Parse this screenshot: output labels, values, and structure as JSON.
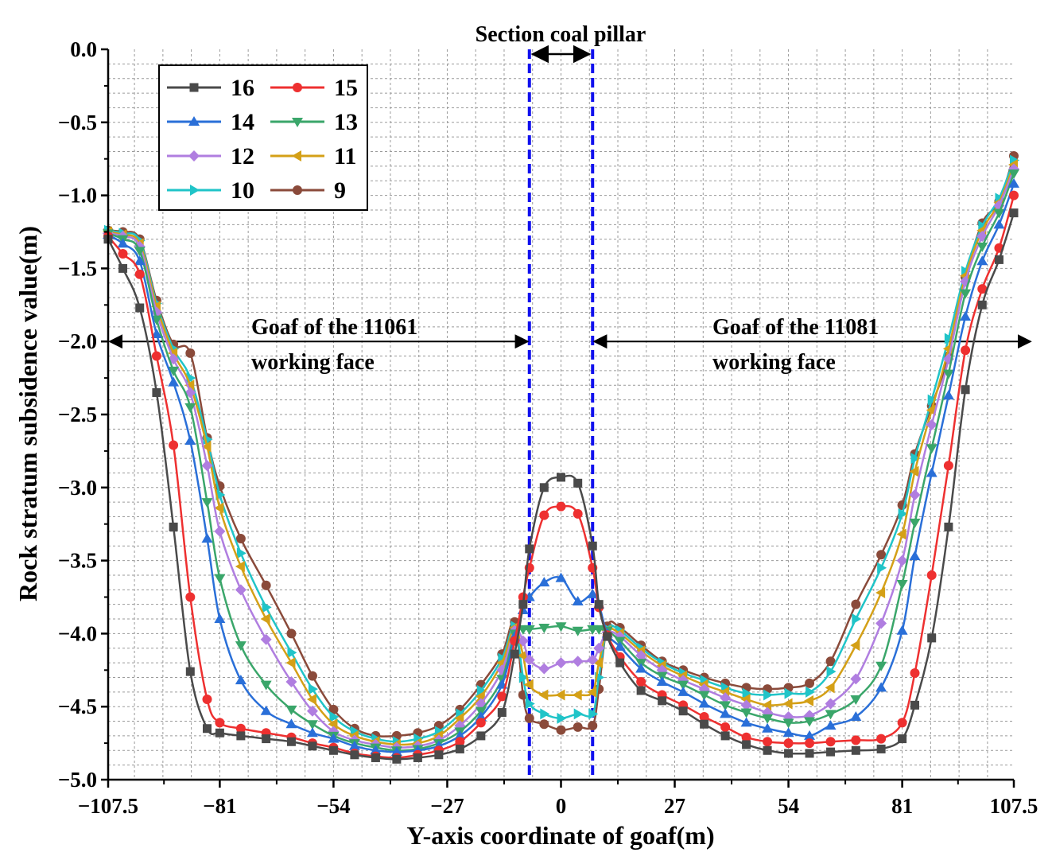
{
  "chart_data": {
    "type": "line",
    "title": "",
    "xlabel": "Y-axis coordinate of goaf(m)",
    "ylabel": "Rock stratum subsidence value(m)",
    "xlim": [
      -107.5,
      107.5
    ],
    "ylim": [
      -5.0,
      0.0
    ],
    "xticks": [
      -107.5,
      -81,
      -54,
      -27,
      0,
      27,
      54,
      81,
      107.5
    ],
    "xtick_labels": [
      "−107.5",
      "−81",
      "−54",
      "−27",
      "0",
      "27",
      "54",
      "81",
      "107.5"
    ],
    "yticks": [
      0.0,
      -0.5,
      -1.0,
      -1.5,
      -2.0,
      -2.5,
      -3.0,
      -3.5,
      -4.0,
      -4.5,
      -5.0
    ],
    "ytick_labels": [
      "0.0",
      "−0.5",
      "−1.0",
      "−1.5",
      "−2.0",
      "−2.5",
      "−3.0",
      "−3.5",
      "−4.0",
      "−4.5",
      "−5.0"
    ],
    "grid": true,
    "legend_position": "top-left",
    "annotations": {
      "pillar_label": "Section coal pillar",
      "left_goaf_line1": "Goaf of the 11061",
      "left_goaf_line2": "working face",
      "right_goaf_line1": "Goaf of the 11081",
      "right_goaf_line2": "working face",
      "pillar_bounds": [
        -7.5,
        7.5
      ],
      "goaf_arrow_y": -2.0
    },
    "colors": {
      "pillar_lines": "#1010ee"
    },
    "series": [
      {
        "name": "16",
        "color": "#4a4a4a",
        "marker": "square",
        "x": [
          -107.5,
          -104,
          -100,
          -96,
          -92,
          -88,
          -84,
          -81,
          -76,
          -70,
          -64,
          -59,
          -54,
          -49,
          -44,
          -39,
          -34,
          -29,
          -24,
          -19,
          -14,
          -11,
          -9,
          -7.5,
          -4,
          0,
          4,
          7.5,
          9,
          11,
          14,
          19,
          24,
          29,
          34,
          39,
          44,
          49,
          54,
          59,
          64,
          70,
          76,
          81,
          84,
          88,
          92,
          96,
          100,
          104,
          107.5
        ],
        "y": [
          -1.3,
          -1.5,
          -1.77,
          -2.35,
          -3.27,
          -4.26,
          -4.65,
          -4.68,
          -4.7,
          -4.72,
          -4.74,
          -4.77,
          -4.8,
          -4.83,
          -4.85,
          -4.86,
          -4.85,
          -4.83,
          -4.79,
          -4.7,
          -4.54,
          -4.14,
          -3.8,
          -3.42,
          -3.0,
          -2.93,
          -2.97,
          -3.4,
          -3.8,
          -4.02,
          -4.2,
          -4.39,
          -4.46,
          -4.53,
          -4.62,
          -4.7,
          -4.76,
          -4.8,
          -4.82,
          -4.82,
          -4.81,
          -4.8,
          -4.79,
          -4.72,
          -4.49,
          -4.03,
          -3.27,
          -2.33,
          -1.75,
          -1.44,
          -1.12
        ]
      },
      {
        "name": "15",
        "color": "#ee3030",
        "marker": "circle",
        "x": [
          -107.5,
          -104,
          -100,
          -96,
          -92,
          -88,
          -84,
          -81,
          -76,
          -70,
          -64,
          -59,
          -54,
          -49,
          -44,
          -39,
          -34,
          -29,
          -24,
          -19,
          -14,
          -11,
          -9,
          -7.5,
          -4,
          0,
          4,
          7.5,
          9,
          11,
          14,
          19,
          24,
          29,
          34,
          39,
          44,
          49,
          54,
          59,
          64,
          70,
          76,
          81,
          84,
          88,
          92,
          96,
          100,
          104,
          107.5
        ],
        "y": [
          -1.28,
          -1.4,
          -1.54,
          -2.1,
          -2.71,
          -3.75,
          -4.45,
          -4.61,
          -4.65,
          -4.68,
          -4.71,
          -4.75,
          -4.78,
          -4.82,
          -4.84,
          -4.85,
          -4.83,
          -4.8,
          -4.74,
          -4.61,
          -4.43,
          -4.05,
          -3.75,
          -3.55,
          -3.19,
          -3.13,
          -3.18,
          -3.55,
          -3.82,
          -4.01,
          -4.16,
          -4.33,
          -4.42,
          -4.49,
          -4.57,
          -4.64,
          -4.71,
          -4.74,
          -4.75,
          -4.75,
          -4.74,
          -4.73,
          -4.72,
          -4.61,
          -4.27,
          -3.6,
          -2.85,
          -2.06,
          -1.64,
          -1.36,
          -1.0
        ]
      },
      {
        "name": "14",
        "color": "#2a6fd8",
        "marker": "triangle-up",
        "x": [
          -107.5,
          -104,
          -100,
          -96,
          -92,
          -88,
          -84,
          -81,
          -76,
          -70,
          -64,
          -59,
          -54,
          -49,
          -44,
          -39,
          -34,
          -29,
          -24,
          -19,
          -14,
          -11,
          -9,
          -7.5,
          -4,
          0,
          4,
          7.5,
          9,
          11,
          14,
          19,
          24,
          29,
          34,
          39,
          44,
          49,
          54,
          59,
          64,
          70,
          76,
          81,
          84,
          88,
          92,
          96,
          100,
          104,
          107.5
        ],
        "y": [
          -1.27,
          -1.33,
          -1.45,
          -1.95,
          -2.28,
          -2.68,
          -3.35,
          -3.9,
          -4.32,
          -4.53,
          -4.62,
          -4.68,
          -4.72,
          -4.77,
          -4.8,
          -4.81,
          -4.8,
          -4.77,
          -4.7,
          -4.57,
          -4.35,
          -4.02,
          -3.84,
          -3.75,
          -3.65,
          -3.62,
          -3.78,
          -3.73,
          -3.8,
          -4.0,
          -4.09,
          -4.24,
          -4.33,
          -4.4,
          -4.48,
          -4.55,
          -4.61,
          -4.65,
          -4.68,
          -4.7,
          -4.63,
          -4.57,
          -4.37,
          -3.98,
          -3.47,
          -2.9,
          -2.37,
          -1.83,
          -1.45,
          -1.2,
          -0.92
        ]
      },
      {
        "name": "13",
        "color": "#3aa66a",
        "marker": "triangle-down",
        "x": [
          -107.5,
          -104,
          -100,
          -96,
          -92,
          -88,
          -84,
          -81,
          -76,
          -70,
          -64,
          -59,
          -54,
          -49,
          -44,
          -39,
          -34,
          -29,
          -24,
          -19,
          -14,
          -11,
          -9,
          -7.5,
          -4,
          0,
          4,
          7.5,
          9,
          11,
          14,
          19,
          24,
          29,
          34,
          39,
          44,
          49,
          54,
          59,
          64,
          70,
          76,
          81,
          84,
          88,
          92,
          96,
          100,
          104,
          107.5
        ],
        "y": [
          -1.26,
          -1.3,
          -1.38,
          -1.85,
          -2.2,
          -2.45,
          -3.1,
          -3.62,
          -4.08,
          -4.35,
          -4.52,
          -4.62,
          -4.7,
          -4.75,
          -4.78,
          -4.8,
          -4.79,
          -4.75,
          -4.67,
          -4.53,
          -4.31,
          -4.0,
          -3.97,
          -3.97,
          -3.96,
          -3.95,
          -3.98,
          -3.97,
          -3.97,
          -3.98,
          -4.05,
          -4.2,
          -4.29,
          -4.35,
          -4.42,
          -4.49,
          -4.54,
          -4.58,
          -4.61,
          -4.6,
          -4.55,
          -4.45,
          -4.22,
          -3.66,
          -3.24,
          -2.73,
          -2.22,
          -1.67,
          -1.35,
          -1.12,
          -0.85
        ]
      },
      {
        "name": "12",
        "color": "#b07ee0",
        "marker": "diamond",
        "x": [
          -107.5,
          -104,
          -100,
          -96,
          -92,
          -88,
          -84,
          -81,
          -76,
          -70,
          -64,
          -59,
          -54,
          -49,
          -44,
          -39,
          -34,
          -29,
          -24,
          -19,
          -14,
          -11,
          -9,
          -7.5,
          -4,
          0,
          4,
          7.5,
          9,
          11,
          14,
          19,
          24,
          29,
          34,
          39,
          44,
          49,
          54,
          59,
          64,
          70,
          76,
          81,
          84,
          88,
          92,
          96,
          100,
          104,
          107.5
        ],
        "y": [
          -1.26,
          -1.28,
          -1.35,
          -1.8,
          -2.12,
          -2.35,
          -2.85,
          -3.3,
          -3.7,
          -4.04,
          -4.33,
          -4.53,
          -4.67,
          -4.73,
          -4.76,
          -4.78,
          -4.77,
          -4.73,
          -4.63,
          -4.48,
          -4.25,
          -3.98,
          -4.05,
          -4.18,
          -4.24,
          -4.2,
          -4.19,
          -4.18,
          -4.1,
          -3.99,
          -4.02,
          -4.15,
          -4.25,
          -4.32,
          -4.38,
          -4.44,
          -4.49,
          -4.54,
          -4.57,
          -4.56,
          -4.48,
          -4.31,
          -3.93,
          -3.5,
          -3.05,
          -2.57,
          -2.12,
          -1.59,
          -1.28,
          -1.07,
          -0.82
        ]
      },
      {
        "name": "11",
        "color": "#d4a017",
        "marker": "triangle-left",
        "x": [
          -107.5,
          -104,
          -100,
          -96,
          -92,
          -88,
          -84,
          -81,
          -76,
          -70,
          -64,
          -59,
          -54,
          -49,
          -44,
          -39,
          -34,
          -29,
          -24,
          -19,
          -14,
          -11,
          -9,
          -7.5,
          -4,
          0,
          4,
          7.5,
          9,
          11,
          14,
          19,
          24,
          29,
          34,
          39,
          44,
          49,
          54,
          59,
          64,
          70,
          76,
          81,
          84,
          88,
          92,
          96,
          100,
          104,
          107.5
        ],
        "y": [
          -1.25,
          -1.27,
          -1.33,
          -1.76,
          -2.08,
          -2.3,
          -2.72,
          -3.14,
          -3.54,
          -3.9,
          -4.2,
          -4.45,
          -4.62,
          -4.7,
          -4.74,
          -4.76,
          -4.75,
          -4.7,
          -4.58,
          -4.43,
          -4.2,
          -3.96,
          -4.15,
          -4.35,
          -4.42,
          -4.42,
          -4.42,
          -4.4,
          -4.2,
          -3.98,
          -4.0,
          -4.12,
          -4.22,
          -4.29,
          -4.35,
          -4.4,
          -4.45,
          -4.49,
          -4.48,
          -4.46,
          -4.37,
          -4.08,
          -3.72,
          -3.32,
          -2.89,
          -2.47,
          -2.05,
          -1.55,
          -1.24,
          -1.05,
          -0.79
        ]
      },
      {
        "name": "10",
        "color": "#20c4c8",
        "marker": "triangle-right",
        "x": [
          -107.5,
          -104,
          -100,
          -96,
          -92,
          -88,
          -84,
          -81,
          -76,
          -70,
          -64,
          -59,
          -54,
          -49,
          -44,
          -39,
          -34,
          -29,
          -24,
          -19,
          -14,
          -11,
          -9,
          -7.5,
          -4,
          0,
          4,
          7.5,
          9,
          11,
          14,
          19,
          24,
          29,
          34,
          39,
          44,
          49,
          54,
          59,
          64,
          70,
          76,
          81,
          84,
          88,
          92,
          96,
          100,
          104,
          107.5
        ],
        "y": [
          -1.24,
          -1.26,
          -1.31,
          -1.74,
          -2.05,
          -2.25,
          -2.67,
          -3.05,
          -3.45,
          -3.82,
          -4.13,
          -4.38,
          -4.57,
          -4.67,
          -4.72,
          -4.74,
          -4.72,
          -4.67,
          -4.55,
          -4.39,
          -4.17,
          -3.95,
          -4.3,
          -4.48,
          -4.55,
          -4.58,
          -4.55,
          -4.55,
          -4.3,
          -3.97,
          -3.98,
          -4.1,
          -4.2,
          -4.27,
          -4.32,
          -4.37,
          -4.41,
          -4.42,
          -4.41,
          -4.4,
          -4.26,
          -3.9,
          -3.55,
          -3.18,
          -2.8,
          -2.4,
          -1.98,
          -1.52,
          -1.21,
          -1.02,
          -0.76
        ]
      },
      {
        "name": "9",
        "color": "#8a4a3a",
        "marker": "circle",
        "x": [
          -107.5,
          -104,
          -100,
          -96,
          -92,
          -88,
          -84,
          -81,
          -76,
          -70,
          -64,
          -59,
          -54,
          -49,
          -44,
          -39,
          -34,
          -29,
          -24,
          -19,
          -14,
          -11,
          -9,
          -7.5,
          -4,
          0,
          4,
          7.5,
          9,
          11,
          14,
          19,
          24,
          29,
          34,
          39,
          44,
          49,
          54,
          59,
          64,
          70,
          76,
          81,
          84,
          88,
          92,
          96,
          100,
          104,
          107.5
        ],
        "y": [
          -1.24,
          -1.25,
          -1.3,
          -1.72,
          -2.02,
          -2.08,
          -2.66,
          -2.99,
          -3.35,
          -3.67,
          -4.0,
          -4.29,
          -4.52,
          -4.65,
          -4.7,
          -4.7,
          -4.68,
          -4.63,
          -4.52,
          -4.35,
          -4.14,
          -3.92,
          -4.42,
          -4.58,
          -4.62,
          -4.66,
          -4.64,
          -4.63,
          -4.38,
          -3.95,
          -3.96,
          -4.08,
          -4.19,
          -4.25,
          -4.3,
          -4.34,
          -4.37,
          -4.38,
          -4.37,
          -4.34,
          -4.19,
          -3.8,
          -3.46,
          -3.12,
          -2.77,
          -2.44,
          -2.1,
          -1.56,
          -1.19,
          -1.04,
          -0.73
        ]
      }
    ]
  }
}
